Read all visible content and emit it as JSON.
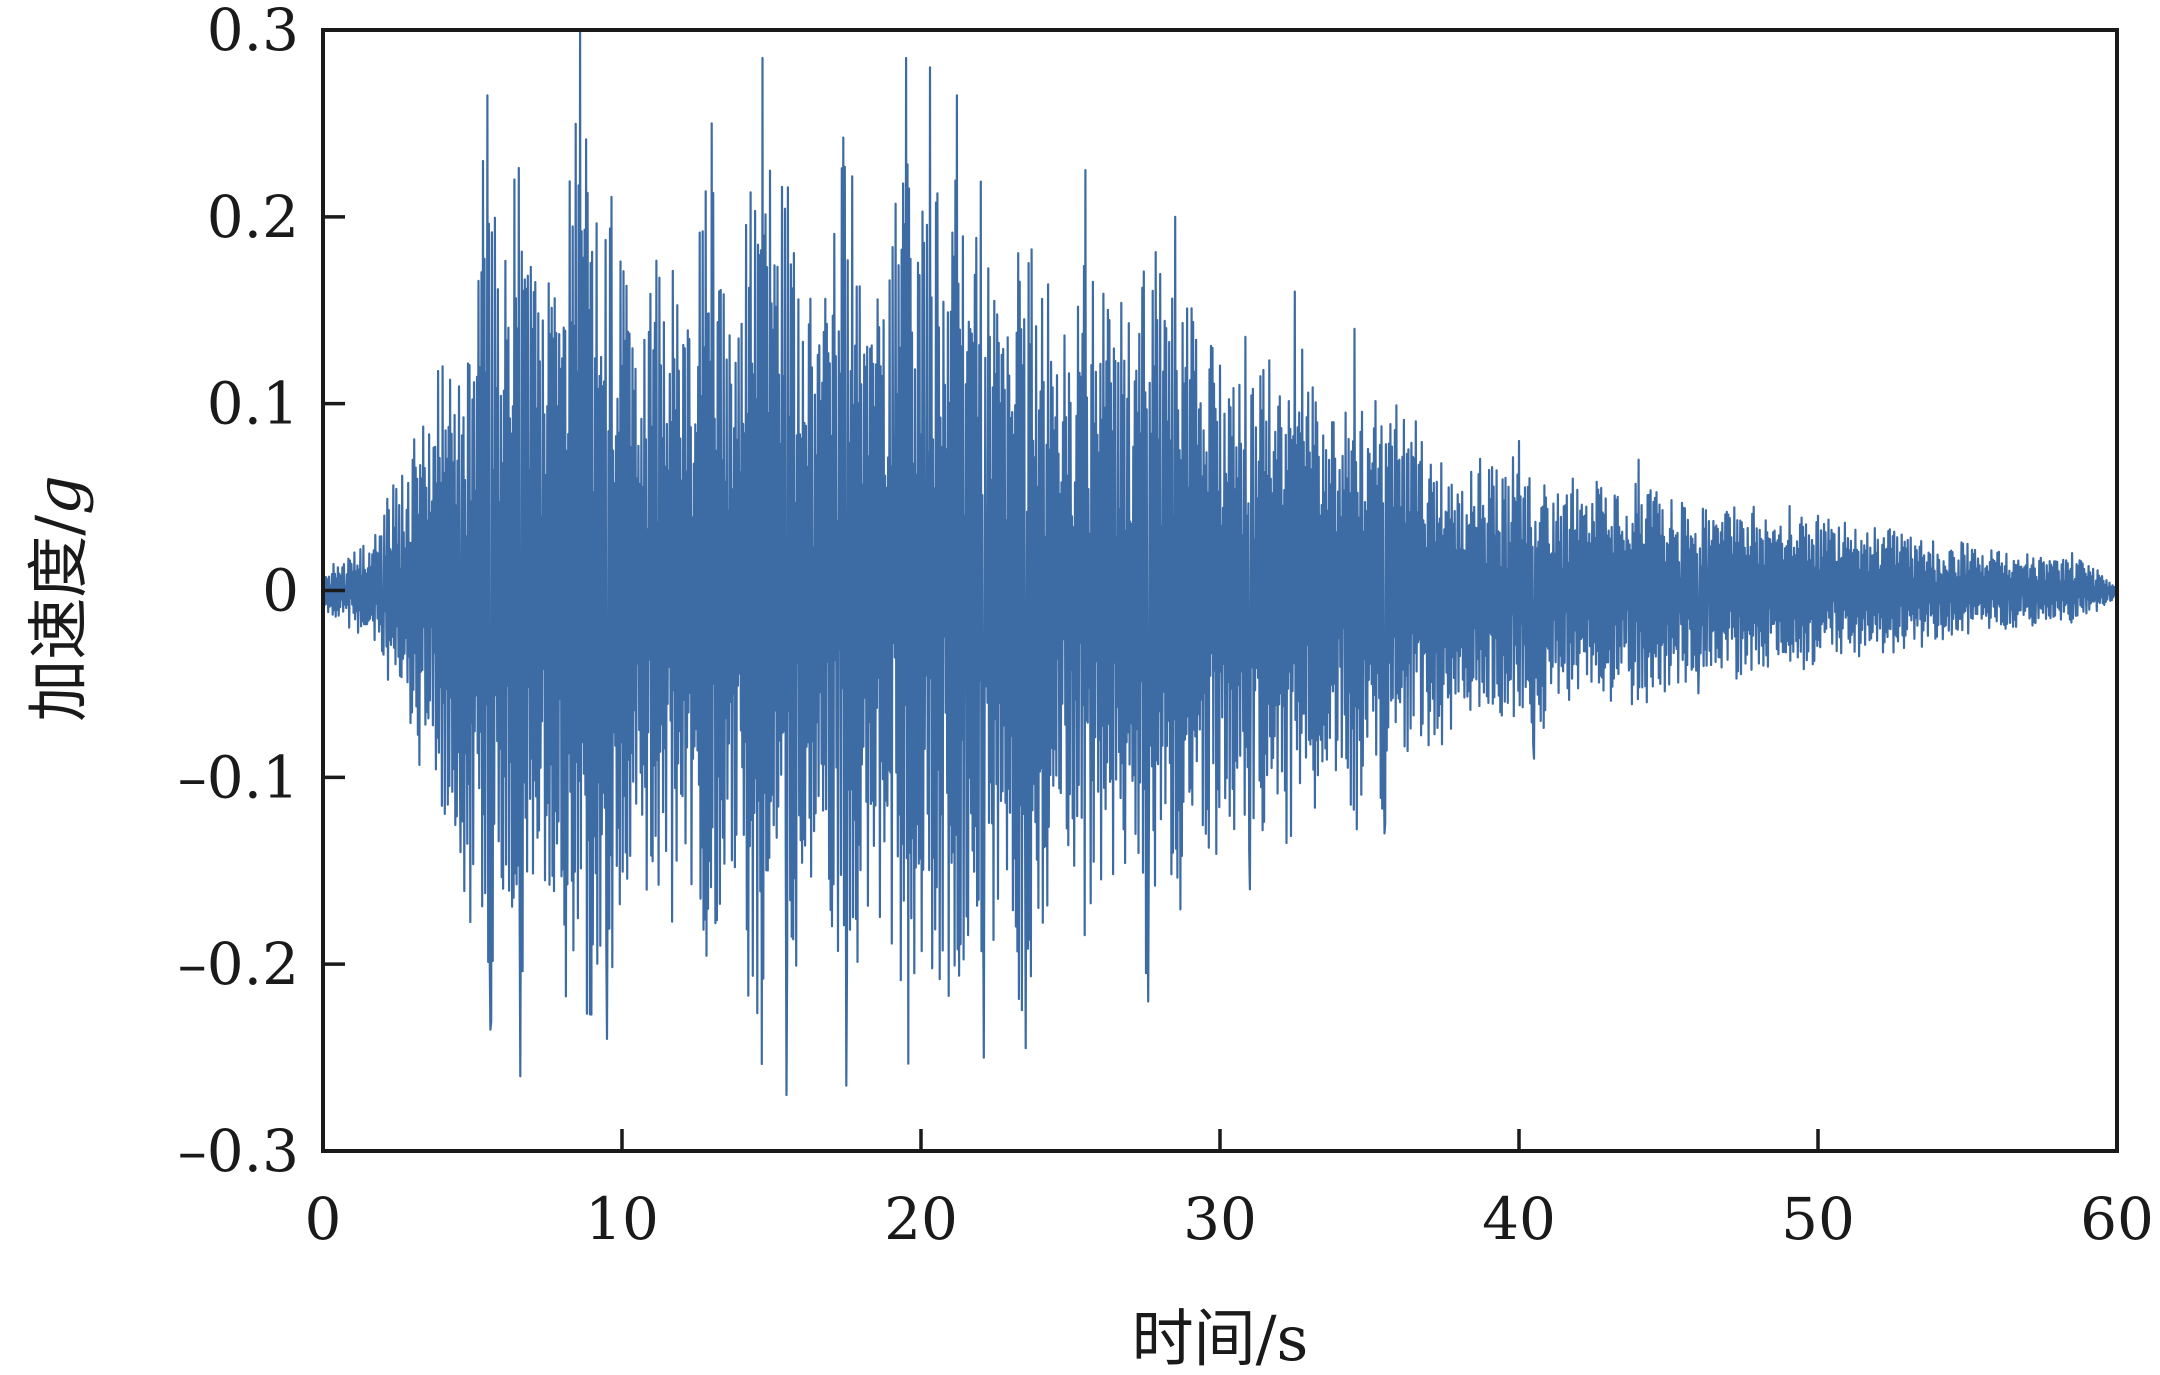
{
  "chart_data": {
    "type": "line",
    "xlabel": "时间/s",
    "ylabel_text": "加速度/",
    "ylabel_unit": "g",
    "xlim": [
      0,
      60
    ],
    "ylim": [
      -0.3,
      0.3
    ],
    "xticks": [
      0,
      10,
      20,
      30,
      40,
      50,
      60
    ],
    "xtick_labels": [
      "0",
      "10",
      "20",
      "30",
      "40",
      "50",
      "60"
    ],
    "yticks": [
      0.3,
      0.2,
      0.1,
      0,
      -0.1,
      -0.2,
      -0.3
    ],
    "ytick_labels": [
      "0.3",
      "0.2",
      "0.1",
      "0",
      "–0.1",
      "–0.2",
      "–0.3"
    ],
    "grid": false,
    "line_color": "#3d6ba4",
    "series": [
      {
        "envelope_note": "dense oscillating acceleration record",
        "peaks": [
          {
            "x": 0,
            "y": 0
          },
          {
            "x": 1,
            "y": 0.01
          },
          {
            "x": 2,
            "y": -0.03
          },
          {
            "x": 3,
            "y": 0.07
          },
          {
            "x": 4,
            "y": 0.12
          },
          {
            "x": 4.6,
            "y": -0.14
          },
          {
            "x": 5.5,
            "y": 0.265
          },
          {
            "x": 5.6,
            "y": -0.235
          },
          {
            "x": 6.4,
            "y": 0.22
          },
          {
            "x": 6.6,
            "y": -0.26
          },
          {
            "x": 8.6,
            "y": 0.3
          },
          {
            "x": 9.5,
            "y": -0.24
          },
          {
            "x": 13,
            "y": 0.25
          },
          {
            "x": 14.7,
            "y": 0.285
          },
          {
            "x": 15.5,
            "y": -0.27
          },
          {
            "x": 17.5,
            "y": -0.265
          },
          {
            "x": 19.5,
            "y": 0.285
          },
          {
            "x": 20.3,
            "y": 0.28
          },
          {
            "x": 21.2,
            "y": 0.265
          },
          {
            "x": 22.1,
            "y": -0.25
          },
          {
            "x": 23.5,
            "y": -0.245
          },
          {
            "x": 25.5,
            "y": 0.225
          },
          {
            "x": 27.6,
            "y": -0.22
          },
          {
            "x": 28.5,
            "y": 0.2
          },
          {
            "x": 31,
            "y": -0.16
          },
          {
            "x": 32.5,
            "y": 0.16
          },
          {
            "x": 34.5,
            "y": 0.14
          },
          {
            "x": 35.5,
            "y": -0.13
          },
          {
            "x": 40,
            "y": 0.08
          },
          {
            "x": 40.5,
            "y": -0.09
          },
          {
            "x": 44,
            "y": 0.07
          },
          {
            "x": 46,
            "y": -0.055
          },
          {
            "x": 50,
            "y": 0.04
          },
          {
            "x": 55,
            "y": 0.025
          },
          {
            "x": 58.5,
            "y": 0.02
          },
          {
            "x": 60,
            "y": 0
          }
        ]
      }
    ]
  }
}
